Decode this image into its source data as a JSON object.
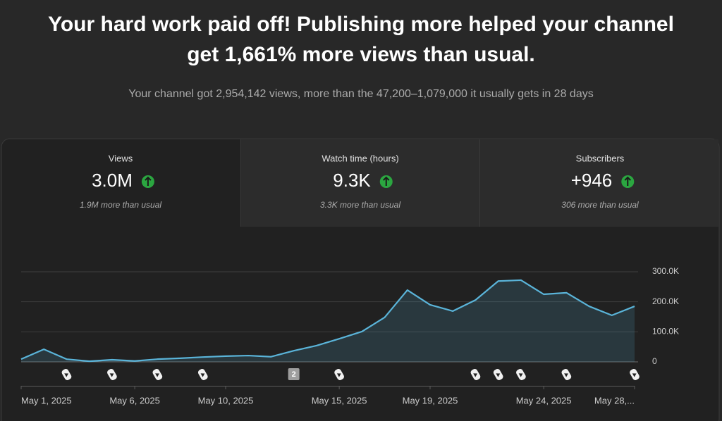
{
  "header": {
    "title_lines": [
      "Your hard work paid off! Publishing more helped your channel",
      "get 1,661% more views than usual."
    ],
    "subtitle": "Your channel got 2,954,142 views, more than the 47,200–1,079,000 it usually gets in 28 days"
  },
  "cards": [
    {
      "label": "Views",
      "value": "3.0M",
      "note": "1.9M more than usual"
    },
    {
      "label": "Watch time (hours)",
      "value": "9.3K",
      "note": "3.3K more than usual"
    },
    {
      "label": "Subscribers",
      "value": "+946",
      "note": "306 more than usual"
    }
  ],
  "chart_data": {
    "type": "line",
    "categories": [
      "May 1, 2025",
      null,
      null,
      null,
      null,
      "May 6, 2025",
      null,
      null,
      null,
      "May 10, 2025",
      null,
      null,
      null,
      null,
      "May 15, 2025",
      null,
      null,
      null,
      "May 19, 2025",
      null,
      null,
      null,
      null,
      "May 24, 2025",
      null,
      null,
      null,
      "May 28,..."
    ],
    "values": [
      9000,
      42000,
      9000,
      2000,
      7000,
      3000,
      9000,
      12000,
      16000,
      19000,
      21000,
      17000,
      37000,
      54000,
      77000,
      101000,
      148000,
      239000,
      190000,
      169000,
      206000,
      269000,
      272000,
      225000,
      230000,
      185000,
      155000,
      185000
    ],
    "color": "#5ab4d9",
    "ylim": [
      0,
      300000
    ],
    "yticks": [
      {
        "value": 0,
        "label": "0"
      },
      {
        "value": 100000,
        "label": "100.0K"
      },
      {
        "value": 200000,
        "label": "200.0K"
      },
      {
        "value": 300000,
        "label": "300.0K"
      }
    ],
    "grid": true,
    "marker_badge": "2"
  }
}
